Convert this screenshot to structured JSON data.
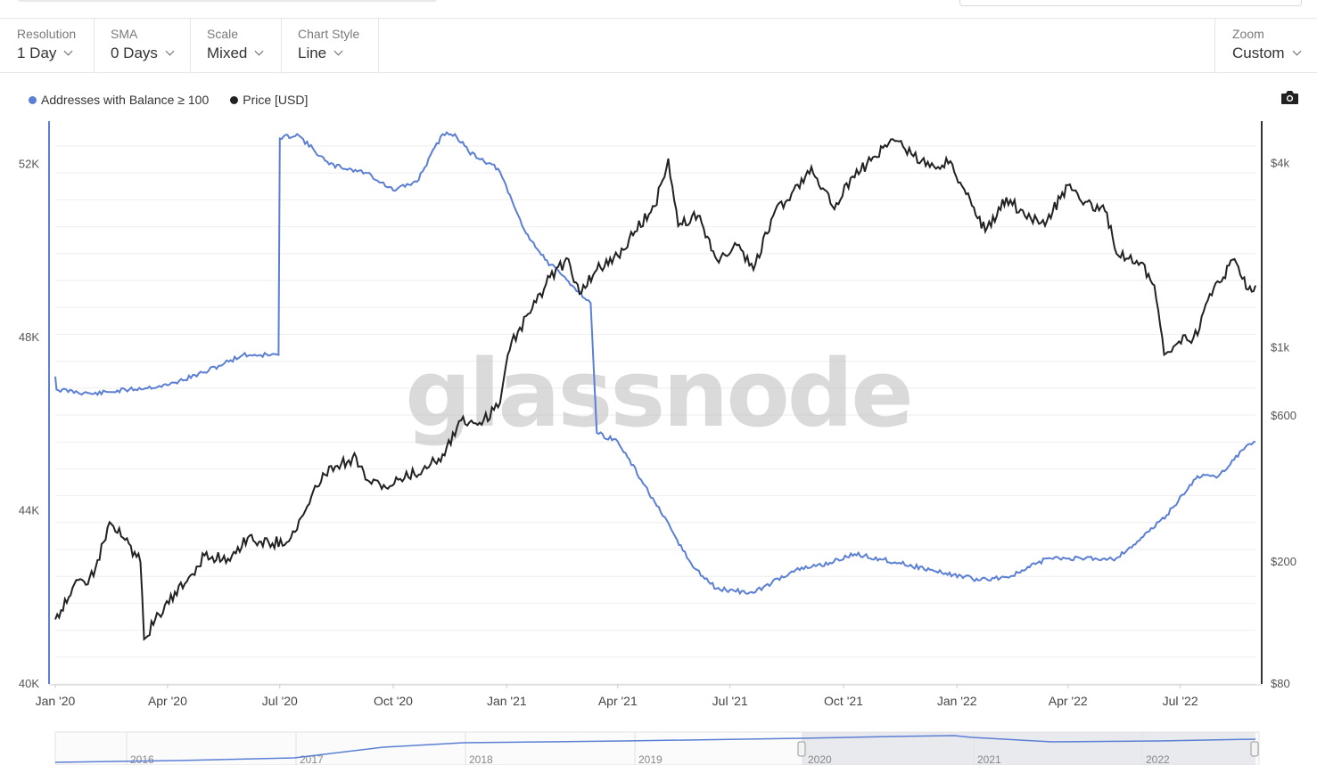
{
  "toolbar": {
    "resolution": {
      "label": "Resolution",
      "value": "1 Day"
    },
    "sma": {
      "label": "SMA",
      "value": "0 Days"
    },
    "scale": {
      "label": "Scale",
      "value": "Mixed"
    },
    "chart_style": {
      "label": "Chart Style",
      "value": "Line"
    },
    "zoom": {
      "label": "Zoom",
      "value": "Custom"
    }
  },
  "legend": [
    {
      "name": "Addresses with Balance ≥ 100",
      "color": "#5b7fd4"
    },
    {
      "name": "Price [USD]",
      "color": "#222222"
    }
  ],
  "watermark": "glassnode",
  "icons": {
    "camera": "camera-icon"
  },
  "navigator": {
    "years": [
      "2016",
      "2017",
      "2018",
      "2019",
      "2020",
      "2021",
      "2022"
    ]
  },
  "chart_data": {
    "type": "line",
    "x_ticks": [
      "Jan '20",
      "Apr '20",
      "Jul '20",
      "Oct '20",
      "Jan '21",
      "Apr '21",
      "Jul '21",
      "Oct '21",
      "Jan '22",
      "Apr '22",
      "Jul '22"
    ],
    "x_range": [
      "2020-01-01",
      "2022-08-31"
    ],
    "left_axis": {
      "ticks": [
        "40K",
        "44K",
        "48K",
        "52K"
      ],
      "ylim": [
        40000,
        53000
      ],
      "scale": "linear"
    },
    "right_axis": {
      "ticks": [
        "$80",
        "$200",
        "$600",
        "$1k",
        "$4k"
      ],
      "ylim": [
        80,
        5500
      ],
      "scale": "log"
    },
    "series": [
      {
        "name": "Addresses with Balance ≥ 100",
        "axis": "left",
        "color": "#5b7fd4",
        "points": [
          [
            "2020-01-01",
            47100
          ],
          [
            "2020-01-02",
            46800
          ],
          [
            "2020-02-01",
            46700
          ],
          [
            "2020-03-01",
            46800
          ],
          [
            "2020-04-01",
            46900
          ],
          [
            "2020-05-01",
            47200
          ],
          [
            "2020-06-01",
            47600
          ],
          [
            "2020-06-30",
            47600
          ],
          [
            "2020-07-01",
            52600
          ],
          [
            "2020-07-15",
            52700
          ],
          [
            "2020-08-10",
            52000
          ],
          [
            "2020-09-10",
            51800
          ],
          [
            "2020-10-01",
            51400
          ],
          [
            "2020-10-20",
            51600
          ],
          [
            "2020-11-10",
            52700
          ],
          [
            "2020-11-20",
            52700
          ],
          [
            "2020-12-01",
            52300
          ],
          [
            "2020-12-25",
            51900
          ],
          [
            "2021-01-15",
            50500
          ],
          [
            "2021-02-01",
            49800
          ],
          [
            "2021-02-20",
            49300
          ],
          [
            "2021-03-10",
            48800
          ],
          [
            "2021-03-15",
            45800
          ],
          [
            "2021-04-01",
            45600
          ],
          [
            "2021-05-01",
            44200
          ],
          [
            "2021-06-01",
            42700
          ],
          [
            "2021-06-20",
            42200
          ],
          [
            "2021-07-20",
            42100
          ],
          [
            "2021-08-20",
            42600
          ],
          [
            "2021-09-20",
            42800
          ],
          [
            "2021-10-10",
            43000
          ],
          [
            "2021-11-15",
            42800
          ],
          [
            "2021-12-15",
            42600
          ],
          [
            "2022-01-20",
            42400
          ],
          [
            "2022-02-15",
            42500
          ],
          [
            "2022-03-15",
            42900
          ],
          [
            "2022-04-15",
            42900
          ],
          [
            "2022-05-10",
            42900
          ],
          [
            "2022-06-01",
            43400
          ],
          [
            "2022-06-20",
            43900
          ],
          [
            "2022-07-15",
            44800
          ],
          [
            "2022-08-01",
            44800
          ],
          [
            "2022-08-20",
            45400
          ],
          [
            "2022-08-31",
            45600
          ]
        ]
      },
      {
        "name": "Price [USD]",
        "axis": "right",
        "color": "#222222",
        "points": [
          [
            "2020-01-01",
            130
          ],
          [
            "2020-01-15",
            165
          ],
          [
            "2020-02-01",
            180
          ],
          [
            "2020-02-14",
            270
          ],
          [
            "2020-02-25",
            240
          ],
          [
            "2020-03-10",
            200
          ],
          [
            "2020-03-13",
            112
          ],
          [
            "2020-03-25",
            135
          ],
          [
            "2020-04-15",
            170
          ],
          [
            "2020-05-01",
            210
          ],
          [
            "2020-05-20",
            205
          ],
          [
            "2020-06-05",
            240
          ],
          [
            "2020-06-25",
            230
          ],
          [
            "2020-07-10",
            240
          ],
          [
            "2020-07-25",
            310
          ],
          [
            "2020-08-05",
            390
          ],
          [
            "2020-08-20",
            420
          ],
          [
            "2020-09-01",
            440
          ],
          [
            "2020-09-10",
            370
          ],
          [
            "2020-09-25",
            350
          ],
          [
            "2020-10-10",
            375
          ],
          [
            "2020-10-25",
            400
          ],
          [
            "2020-11-10",
            450
          ],
          [
            "2020-11-25",
            580
          ],
          [
            "2020-12-10",
            570
          ],
          [
            "2020-12-25",
            640
          ],
          [
            "2021-01-05",
            1050
          ],
          [
            "2021-01-20",
            1300
          ],
          [
            "2021-02-05",
            1700
          ],
          [
            "2021-02-20",
            1950
          ],
          [
            "2021-03-01",
            1500
          ],
          [
            "2021-03-15",
            1800
          ],
          [
            "2021-04-01",
            2000
          ],
          [
            "2021-04-15",
            2400
          ],
          [
            "2021-05-01",
            2900
          ],
          [
            "2021-05-12",
            4150
          ],
          [
            "2021-05-20",
            2500
          ],
          [
            "2021-06-05",
            2700
          ],
          [
            "2021-06-22",
            1900
          ],
          [
            "2021-07-05",
            2200
          ],
          [
            "2021-07-20",
            1800
          ],
          [
            "2021-08-05",
            2700
          ],
          [
            "2021-08-20",
            3200
          ],
          [
            "2021-09-05",
            3900
          ],
          [
            "2021-09-22",
            2900
          ],
          [
            "2021-10-10",
            3600
          ],
          [
            "2021-10-25",
            4200
          ],
          [
            "2021-11-10",
            4800
          ],
          [
            "2021-11-25",
            4300
          ],
          [
            "2021-12-10",
            3900
          ],
          [
            "2021-12-25",
            4000
          ],
          [
            "2022-01-10",
            3200
          ],
          [
            "2022-01-24",
            2400
          ],
          [
            "2022-02-10",
            3100
          ],
          [
            "2022-02-25",
            2700
          ],
          [
            "2022-03-15",
            2600
          ],
          [
            "2022-04-01",
            3400
          ],
          [
            "2022-04-15",
            3000
          ],
          [
            "2022-05-01",
            2800
          ],
          [
            "2022-05-12",
            2000
          ],
          [
            "2022-05-30",
            1900
          ],
          [
            "2022-06-10",
            1600
          ],
          [
            "2022-06-18",
            950
          ],
          [
            "2022-06-30",
            1050
          ],
          [
            "2022-07-15",
            1100
          ],
          [
            "2022-07-25",
            1500
          ],
          [
            "2022-08-05",
            1700
          ],
          [
            "2022-08-14",
            1950
          ],
          [
            "2022-08-25",
            1550
          ],
          [
            "2022-08-31",
            1600
          ]
        ]
      }
    ],
    "grid": true,
    "legend_position": "top-left"
  }
}
